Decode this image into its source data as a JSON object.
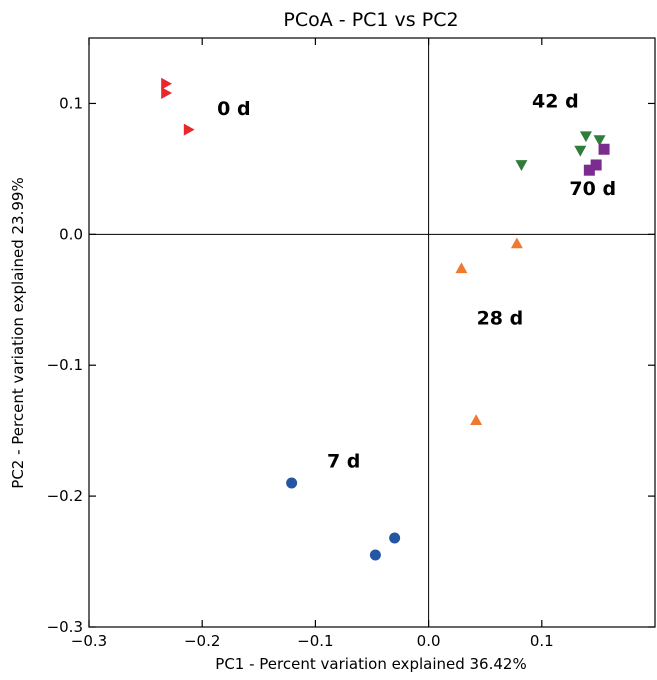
{
  "chart_data": {
    "type": "scatter",
    "title": "PCoA - PC1 vs PC2",
    "xlabel": "PC1 - Percent variation explained 36.42%",
    "ylabel": "PC2 - Percent variation explained 23.99%",
    "xlim": [
      -0.3,
      0.2
    ],
    "ylim": [
      -0.3,
      0.15
    ],
    "xticks": [
      -0.3,
      -0.2,
      -0.1,
      0.0,
      0.1
    ],
    "xtick_labels": [
      "−0.3",
      "−0.2",
      "−0.1",
      "0.0",
      "0.1"
    ],
    "yticks": [
      -0.3,
      -0.2,
      -0.1,
      0.0,
      0.1
    ],
    "ytick_labels": [
      "−0.3",
      "−0.2",
      "−0.1",
      "0.0",
      "0.1"
    ],
    "grid": false,
    "reference_lines": {
      "x": 0.0,
      "y": 0.0
    },
    "series": [
      {
        "name": "0 d",
        "marker": "triangle-right",
        "color": "#e8282d",
        "x": [
          -0.232,
          -0.232,
          -0.212
        ],
        "y": [
          0.115,
          0.108,
          0.08
        ]
      },
      {
        "name": "7 d",
        "marker": "circle",
        "color": "#2356a3",
        "x": [
          -0.121,
          -0.047,
          -0.03
        ],
        "y": [
          -0.19,
          -0.245,
          -0.232
        ]
      },
      {
        "name": "28 d",
        "marker": "triangle-up",
        "color": "#ef7930",
        "x": [
          0.029,
          0.078,
          0.042
        ],
        "y": [
          -0.026,
          -0.007,
          -0.142
        ]
      },
      {
        "name": "42 d",
        "marker": "triangle-down",
        "color": "#2f7d3a",
        "x": [
          0.082,
          0.134,
          0.139,
          0.151
        ],
        "y": [
          0.053,
          0.064,
          0.075,
          0.072
        ]
      },
      {
        "name": "70 d",
        "marker": "square",
        "color": "#7b2c8f",
        "x": [
          0.142,
          0.148,
          0.155
        ],
        "y": [
          0.049,
          0.053,
          0.065
        ]
      }
    ],
    "annotations": [
      {
        "text": "0 d",
        "x": -0.172,
        "y": 0.091
      },
      {
        "text": "7 d",
        "x": -0.075,
        "y": -0.178
      },
      {
        "text": "28 d",
        "x": 0.063,
        "y": -0.069
      },
      {
        "text": "42 d",
        "x": 0.112,
        "y": 0.097
      },
      {
        "text": "70 d",
        "x": 0.145,
        "y": 0.03
      }
    ]
  }
}
